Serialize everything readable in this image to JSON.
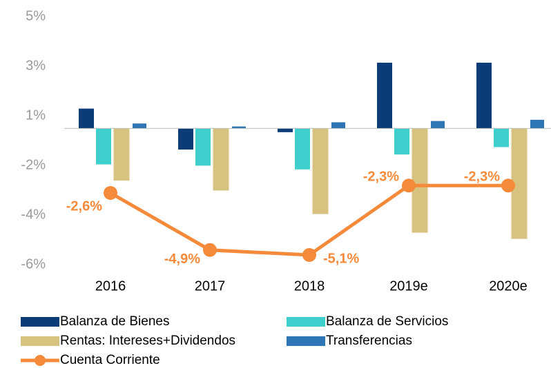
{
  "chart_data": {
    "type": "bar_line",
    "categories": [
      "2016",
      "2017",
      "2018",
      "2019e",
      "2020e"
    ],
    "series": [
      {
        "name": "Balanza de Bienes",
        "color": "#0b3c78",
        "values": [
          0.8,
          -0.85,
          -0.15,
          2.65,
          2.65
        ]
      },
      {
        "name": "Balanza de Servicios",
        "color": "#3fcfcc",
        "values": [
          -1.45,
          -1.5,
          -1.65,
          -1.05,
          -0.75
        ]
      },
      {
        "name": "Rentas: Intereses+Dividendos",
        "color": "#d8c27f",
        "values": [
          -2.1,
          -2.5,
          -3.45,
          -4.2,
          -4.45
        ]
      },
      {
        "name": "Transferencias",
        "color": "#2e75b6",
        "values": [
          0.2,
          0.08,
          0.25,
          0.3,
          0.35
        ]
      },
      {
        "name": "Cuenta Corriente",
        "color": "#f58a3a",
        "type": "line",
        "values": [
          -2.6,
          -4.9,
          -5.1,
          -2.3,
          -2.3
        ],
        "value_labels": [
          "-2,6%",
          "-4,9%",
          "-5,1%",
          "-2,3%",
          "-2,3%"
        ]
      }
    ],
    "ylim": [
      -5.9,
      4.9
    ],
    "yticks": [
      {
        "value": 4.5,
        "label": "5%"
      },
      {
        "value": 2.5,
        "label": "3%"
      },
      {
        "value": 0.5,
        "label": "1%"
      },
      {
        "value": -1.5,
        "label": "-2%"
      },
      {
        "value": -3.5,
        "label": "-4%"
      },
      {
        "value": -5.5,
        "label": "-6%"
      }
    ]
  }
}
